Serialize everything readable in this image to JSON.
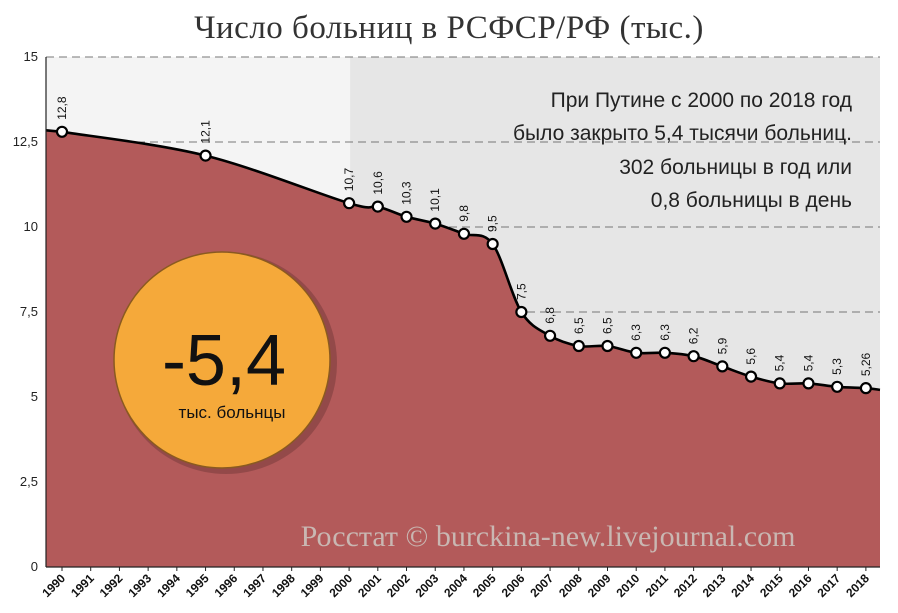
{
  "title": "Число больниц в РСФСР/РФ (тыс.)",
  "annotation": [
    "При Путине с 2000 по 2018 год",
    "было закрыто 5,4 тысячи больниц.",
    "302 больницы в год или",
    "0,8 больницы в день"
  ],
  "badge": {
    "value": "-5,4",
    "unit": "тыс. больнцы"
  },
  "watermark": "Росстат © burckina-new.livejournal.com",
  "colors": {
    "area": "#b35a5a",
    "badge": "#f5a93a",
    "highlight_bg": "#e6e6e6",
    "line": "#000000"
  },
  "chart_data": {
    "type": "area",
    "title": "Число больниц в РСФСР/РФ (тыс.)",
    "xlabel": "",
    "ylabel": "",
    "ylim": [
      0,
      15
    ],
    "yticks": [
      "0",
      "2,5",
      "5",
      "7,5",
      "10",
      "12,5",
      "15"
    ],
    "x": [
      "1990",
      "1991",
      "1992",
      "1993",
      "1994",
      "1995",
      "1996",
      "1997",
      "1998",
      "1999",
      "2000",
      "2001",
      "2002",
      "2003",
      "2004",
      "2005",
      "2006",
      "2007",
      "2008",
      "2009",
      "2010",
      "2011",
      "2012",
      "2013",
      "2014",
      "2015",
      "2016",
      "2017",
      "2018"
    ],
    "points": [
      {
        "x": "1990",
        "y": 12.8,
        "label": "12,8"
      },
      {
        "x": "1995",
        "y": 12.1,
        "label": "12,1"
      },
      {
        "x": "2000",
        "y": 10.7,
        "label": "10,7"
      },
      {
        "x": "2001",
        "y": 10.6,
        "label": "10,6"
      },
      {
        "x": "2002",
        "y": 10.3,
        "label": "10,3"
      },
      {
        "x": "2003",
        "y": 10.1,
        "label": "10,1"
      },
      {
        "x": "2004",
        "y": 9.8,
        "label": "9,8"
      },
      {
        "x": "2005",
        "y": 9.5,
        "label": "9,5"
      },
      {
        "x": "2006",
        "y": 7.5,
        "label": "7,5"
      },
      {
        "x": "2007",
        "y": 6.8,
        "label": "6,8"
      },
      {
        "x": "2008",
        "y": 6.5,
        "label": "6,5"
      },
      {
        "x": "2009",
        "y": 6.5,
        "label": "6,5"
      },
      {
        "x": "2010",
        "y": 6.3,
        "label": "6,3"
      },
      {
        "x": "2011",
        "y": 6.3,
        "label": "6,3"
      },
      {
        "x": "2012",
        "y": 6.2,
        "label": "6,2"
      },
      {
        "x": "2013",
        "y": 5.9,
        "label": "5,9"
      },
      {
        "x": "2014",
        "y": 5.6,
        "label": "5,6"
      },
      {
        "x": "2015",
        "y": 5.4,
        "label": "5,4"
      },
      {
        "x": "2016",
        "y": 5.4,
        "label": "5,4"
      },
      {
        "x": "2017",
        "y": 5.3,
        "label": "5,3"
      },
      {
        "x": "2018",
        "y": 5.26,
        "label": "5,26"
      }
    ],
    "highlight_range": [
      "2000",
      "2018"
    ],
    "grid": true,
    "legend": "none"
  }
}
